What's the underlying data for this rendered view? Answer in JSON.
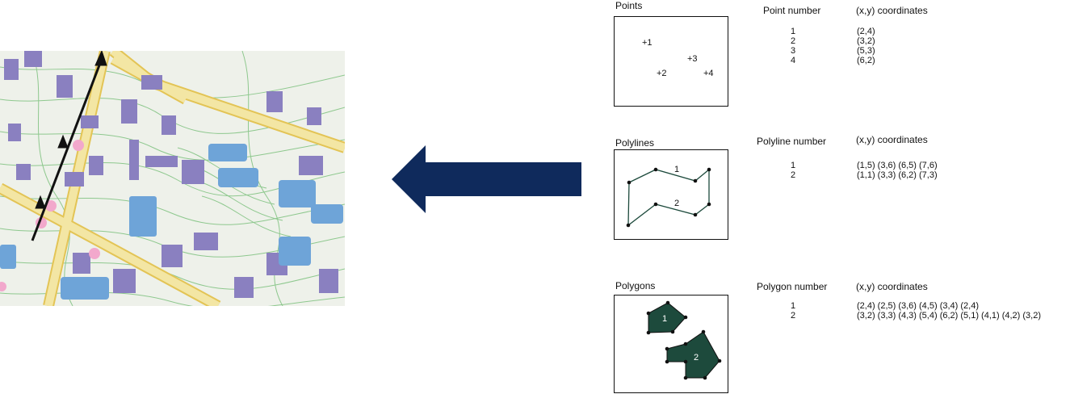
{
  "colors": {
    "map_background": "#eef1ea",
    "building": "#8a80c0",
    "building_blue": "#6ea4d8",
    "road_fill": "#f3e6a4",
    "road_edge": "#e3c455",
    "contour": "#8ec88e",
    "pin": "#f2a8cc",
    "arrow_fill": "#0f2a5c",
    "polygon_fill": "#1d4a3c",
    "point_mark": "#1d4a3c"
  },
  "map": {
    "icon": "map-thumbnail"
  },
  "points": {
    "title": "Points",
    "col_number": "Point number",
    "col_coords": "(x,y) coordinates",
    "markers": [
      "+1",
      "+2",
      "+3",
      "+4"
    ],
    "rows": [
      {
        "number": "1",
        "coords": "(2,4)"
      },
      {
        "number": "2",
        "coords": "(3,2)"
      },
      {
        "number": "3",
        "coords": "(5,3)"
      },
      {
        "number": "4",
        "coords": "(6,2)"
      }
    ]
  },
  "polylines": {
    "title": "Polylines",
    "col_number": "Polyline number",
    "col_coords": "(x,y) coordinates",
    "labels": [
      "1",
      "2"
    ],
    "rows": [
      {
        "number": "1",
        "coords": "(1,5) (3,6) (6,5) (7,6)"
      },
      {
        "number": "2",
        "coords": "(1,1) (3,3) (6,2) (7,3)"
      }
    ]
  },
  "polygons": {
    "title": "Polygons",
    "col_number": "Polygon number",
    "col_coords": "(x,y) coordinates",
    "labels": [
      "1",
      "2"
    ],
    "rows": [
      {
        "number": "1",
        "coords": "(2,4) (2,5) (3,6) (4,5) (3,4) (2,4)"
      },
      {
        "number": "2",
        "coords": "(3,2) (3,3) (4,3) (5,4) (6,2) (5,1) (4,1) (4,2) (3,2)"
      }
    ]
  }
}
